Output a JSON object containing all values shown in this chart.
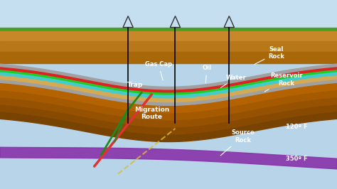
{
  "bg_color": "#b8d4e8",
  "surface_color": "#5a9e32",
  "sky_color": "#c8dff0",
  "labels": {
    "gas_cap": "Gas Cap",
    "oil": "Oil",
    "water": "Water",
    "trap": "Trap",
    "seal_rock": "Seal\nRock",
    "reservoir_rock": "Reservoir\nRock",
    "migration_route": "Migration\nRoute",
    "source_rock": "Source\nRock",
    "temp1": "120º F",
    "temp2": "350º F"
  },
  "layer_colors": {
    "sky": "#c5dff0",
    "surface_green": "#4a9e28",
    "earth1": "#c8882a",
    "earth2": "#b8781a",
    "earth3": "#a8680a",
    "earth4": "#986000",
    "earth_dark": "#7a4800",
    "reservoir_sand": "#d4aa55",
    "seal_gray": "#a0a0a0",
    "gas_cap_red": "#dd2222",
    "oil_green": "#22cc22",
    "water_cyan": "#44cccc",
    "source_purple": "#8833aa",
    "migration_red": "#dd3333",
    "migration_green": "#228822",
    "migration_yellow": "#ccaa22",
    "fault_yellow": "#ddbb33"
  },
  "figsize": [
    4.74,
    2.66
  ],
  "dpi": 100
}
